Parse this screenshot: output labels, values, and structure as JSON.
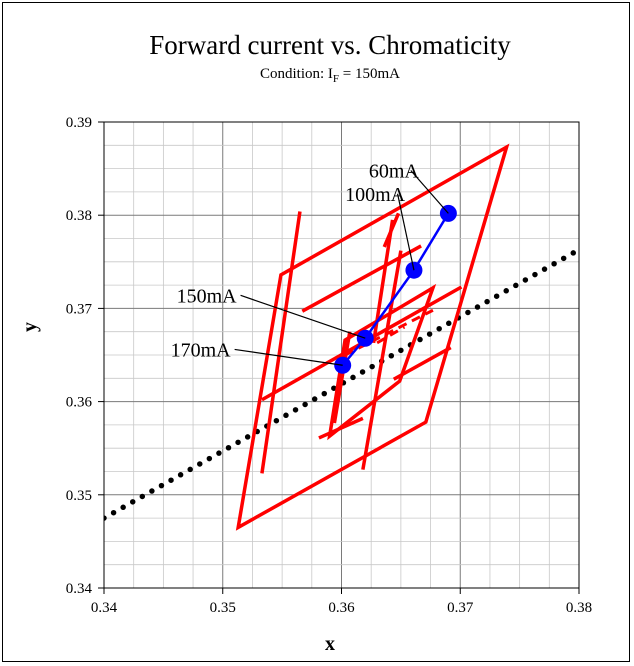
{
  "chart_data": {
    "type": "scatter",
    "title": "Forward current vs. Chromaticity",
    "subtitle": {
      "prefix": "Condition: I",
      "subscript": "F",
      "suffix": " = 150mA"
    },
    "xlabel": "x",
    "ylabel": "y",
    "xlim": [
      0.34,
      0.38
    ],
    "ylim": [
      0.34,
      0.39
    ],
    "grid": true,
    "xticks": [
      0.34,
      0.35,
      0.36,
      0.37,
      0.38
    ],
    "yticks": [
      0.34,
      0.35,
      0.36,
      0.37,
      0.38,
      0.39
    ],
    "xtick_labels": [
      "0.34",
      "0.35",
      "0.36",
      "0.37",
      "0.38"
    ],
    "ytick_labels": [
      "0.34",
      "0.35",
      "0.36",
      "0.37",
      "0.38",
      "0.39"
    ],
    "colors": {
      "bins": "#ff0000",
      "series": "#0000ff",
      "blackbody": "#000000"
    },
    "blackbody_locus": [
      [
        0.34,
        0.3475
      ],
      [
        0.38,
        0.3763
      ]
    ],
    "bin_outer": [
      [
        0.3513,
        0.3465
      ],
      [
        0.3549,
        0.3736
      ],
      [
        0.3739,
        0.3873
      ],
      [
        0.3671,
        0.3578
      ]
    ],
    "bin_inner": [
      [
        0.359,
        0.3563
      ],
      [
        0.3603,
        0.3666
      ],
      [
        0.3677,
        0.3722
      ],
      [
        0.3649,
        0.3622
      ]
    ],
    "bin_lines": [
      [
        [
          0.3533,
          0.3602
        ],
        [
          0.3701,
          0.3723
        ]
      ],
      [
        [
          0.3567,
          0.3697
        ],
        [
          0.3667,
          0.3767
        ]
      ],
      [
        [
          0.3581,
          0.3561
        ],
        [
          0.3618,
          0.3582
        ]
      ],
      [
        [
          0.3644,
          0.3624
        ],
        [
          0.3692,
          0.3658
        ]
      ],
      [
        [
          0.3533,
          0.3523
        ],
        [
          0.3565,
          0.3804
        ]
      ],
      [
        [
          0.3594,
          0.3577
        ],
        [
          0.3607,
          0.3675
        ]
      ],
      [
        [
          0.3636,
          0.3766
        ],
        [
          0.3648,
          0.3802
        ]
      ],
      [
        [
          0.3627,
          0.3663
        ],
        [
          0.3643,
          0.3795
        ]
      ],
      [
        [
          0.3618,
          0.3527
        ],
        [
          0.365,
          0.3762
        ]
      ]
    ],
    "bin_dashed": [
      [
        [
          0.3603,
          0.365
        ],
        [
          0.3677,
          0.3698
        ]
      ],
      [
        [
          0.363,
          0.3663
        ],
        [
          0.3653,
          0.368
        ]
      ]
    ],
    "series": [
      {
        "x": [
          0.3601,
          0.362,
          0.3661,
          0.369
        ],
        "y": [
          0.3639,
          0.3668,
          0.3741,
          0.3802
        ]
      }
    ],
    "annotations": [
      {
        "text": "60mA",
        "point": [
          0.369,
          0.3802
        ],
        "label_x": 0.3623,
        "label_y": 0.3848,
        "anchor": "start"
      },
      {
        "text": "100mA",
        "point": [
          0.3661,
          0.3741
        ],
        "label_x": 0.3603,
        "label_y": 0.3823,
        "anchor": "start"
      },
      {
        "text": "150mA",
        "point": [
          0.362,
          0.3668
        ],
        "label_x": 0.3515,
        "label_y": 0.3714,
        "anchor": "end"
      },
      {
        "text": "170mA",
        "point": [
          0.3601,
          0.3639
        ],
        "label_x": 0.351,
        "label_y": 0.3656,
        "anchor": "end"
      }
    ]
  }
}
